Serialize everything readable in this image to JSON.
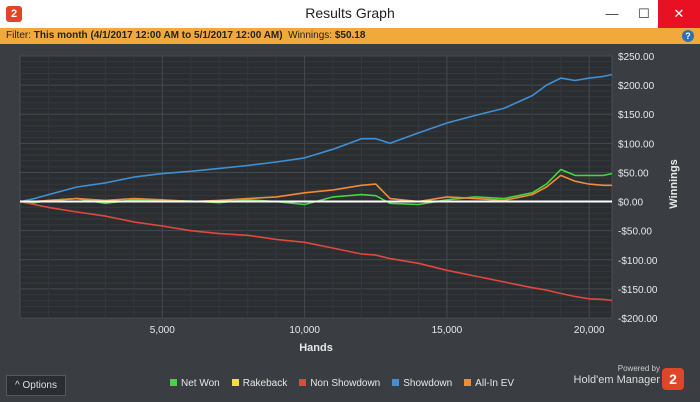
{
  "window": {
    "title": "Results Graph",
    "app_icon": "hem-logo-icon"
  },
  "filter": {
    "label": "Filter:",
    "value": "This month (4/1/2017 12:00 AM to 5/1/2017 12:00 AM)",
    "winnings_label": "Winnings:",
    "winnings_value": "$50.18"
  },
  "options_label": "^ Options",
  "brand": {
    "powered": "Powered by",
    "product": "Hold'em Manager"
  },
  "colors": {
    "background": "#3a3d41",
    "plot": "#2b2e31",
    "net_won": "#44d63e",
    "rakeback": "#f3df3d",
    "non_showdown": "#e2473f",
    "showdown": "#3f8fd4",
    "all_in_ev": "#ef8c34",
    "zero_line": "#ffffff"
  },
  "chart_data": {
    "type": "line",
    "title": "",
    "xlabel": "Hands",
    "ylabel": "Winnings",
    "xlim": [
      0,
      20800
    ],
    "ylim": [
      -200,
      250
    ],
    "xticks": [
      5000,
      10000,
      15000,
      20000
    ],
    "xtick_labels": [
      "5,000",
      "10,000",
      "15,000",
      "20,000"
    ],
    "yticks": [
      250,
      200,
      150,
      100,
      50,
      0,
      -50,
      -100,
      -150,
      -200
    ],
    "ytick_labels": [
      "$250.00",
      "$200.00",
      "$150.00",
      "$100.00",
      "$50.00",
      "$0.00",
      "-$50.00",
      "-$100.00",
      "-$150.00",
      "-$200.00"
    ],
    "grid": true,
    "legend_position": "bottom",
    "x": [
      0,
      500,
      1000,
      2000,
      3000,
      4000,
      5000,
      6000,
      7000,
      8000,
      9000,
      10000,
      11000,
      12000,
      12500,
      13000,
      14000,
      15000,
      16000,
      17000,
      18000,
      18500,
      19000,
      19500,
      20000,
      20500,
      20800
    ],
    "series": [
      {
        "name": "Net Won",
        "color": "#44d63e",
        "values": [
          0,
          -2,
          2,
          5,
          -3,
          3,
          2,
          1,
          -2,
          3,
          0,
          -5,
          8,
          12,
          10,
          -3,
          -5,
          3,
          8,
          5,
          15,
          30,
          55,
          45,
          45,
          45,
          48
        ]
      },
      {
        "name": "Rakeback",
        "color": "#f3df3d",
        "values": [
          0,
          0,
          0,
          0,
          0,
          0,
          0,
          0,
          0,
          0,
          0,
          0,
          0,
          0,
          0,
          0,
          0,
          0,
          0,
          0,
          0,
          0,
          0,
          0,
          0,
          0,
          0
        ]
      },
      {
        "name": "Non Showdown",
        "color": "#e2473f",
        "values": [
          0,
          -5,
          -10,
          -18,
          -25,
          -35,
          -42,
          -50,
          -55,
          -58,
          -65,
          -70,
          -80,
          -90,
          -92,
          -98,
          -106,
          -118,
          -128,
          -138,
          -148,
          -152,
          -158,
          -163,
          -167,
          -168,
          -170
        ]
      },
      {
        "name": "Showdown",
        "color": "#3f8fd4",
        "values": [
          0,
          5,
          12,
          25,
          32,
          42,
          48,
          52,
          57,
          62,
          68,
          75,
          90,
          108,
          108,
          100,
          118,
          135,
          148,
          160,
          182,
          200,
          212,
          208,
          212,
          215,
          218
        ]
      },
      {
        "name": "All-In EV",
        "color": "#ef8c34",
        "values": [
          0,
          0,
          2,
          5,
          2,
          5,
          3,
          0,
          2,
          5,
          8,
          15,
          20,
          28,
          30,
          5,
          0,
          8,
          5,
          2,
          12,
          25,
          45,
          35,
          30,
          28,
          28
        ]
      }
    ]
  }
}
